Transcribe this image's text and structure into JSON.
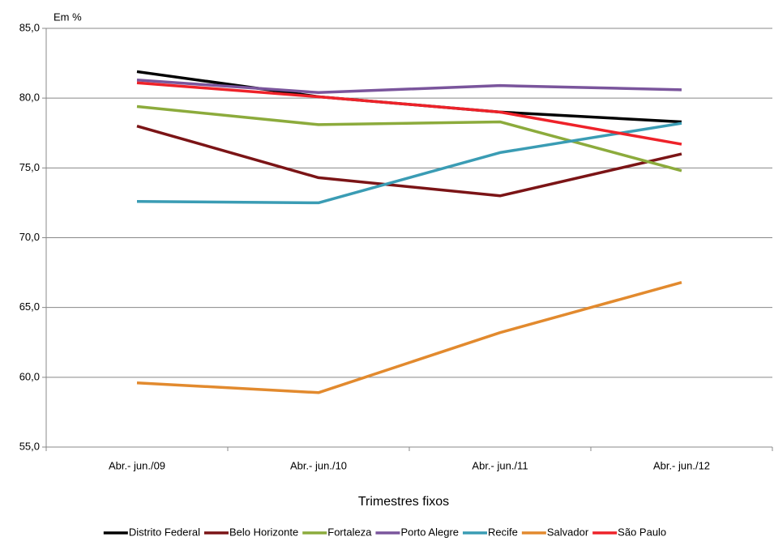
{
  "chart_data": {
    "type": "line",
    "y_unit": "Em %",
    "x_label": "Trimestres fixos",
    "categories": [
      "Abr.- jun./09",
      "Abr.- jun./10",
      "Abr.- jun./11",
      "Abr.- jun./12"
    ],
    "ylim": [
      55,
      85
    ],
    "yticks": [
      {
        "value": 55,
        "label": "55,0"
      },
      {
        "value": 60,
        "label": "60,0"
      },
      {
        "value": 65,
        "label": "65,0"
      },
      {
        "value": 70,
        "label": "70,0"
      },
      {
        "value": 75,
        "label": "75,0"
      },
      {
        "value": 80,
        "label": "80,0"
      },
      {
        "value": 85,
        "label": "85,0"
      }
    ],
    "grid": true,
    "legend": "bottom",
    "series": [
      {
        "name": "Distrito Federal",
        "color": "#000000",
        "values": [
          81.9,
          80.1,
          79.0,
          78.3
        ]
      },
      {
        "name": "Belo Horizonte",
        "color": "#7b1416",
        "values": [
          78.0,
          74.3,
          73.0,
          76.0
        ]
      },
      {
        "name": "Fortaleza",
        "color": "#8cab3c",
        "values": [
          79.4,
          78.1,
          78.3,
          74.8
        ]
      },
      {
        "name": "Porto Alegre",
        "color": "#7a559c",
        "values": [
          81.3,
          80.4,
          80.9,
          80.6
        ]
      },
      {
        "name": "Recife",
        "color": "#3a9cb4",
        "values": [
          72.6,
          72.5,
          76.1,
          78.2
        ]
      },
      {
        "name": "Salvador",
        "color": "#e28a2e",
        "values": [
          59.6,
          58.9,
          63.2,
          66.8
        ]
      },
      {
        "name": "São Paulo",
        "color": "#ee2229",
        "values": [
          81.1,
          80.1,
          79.0,
          76.7
        ]
      }
    ]
  }
}
